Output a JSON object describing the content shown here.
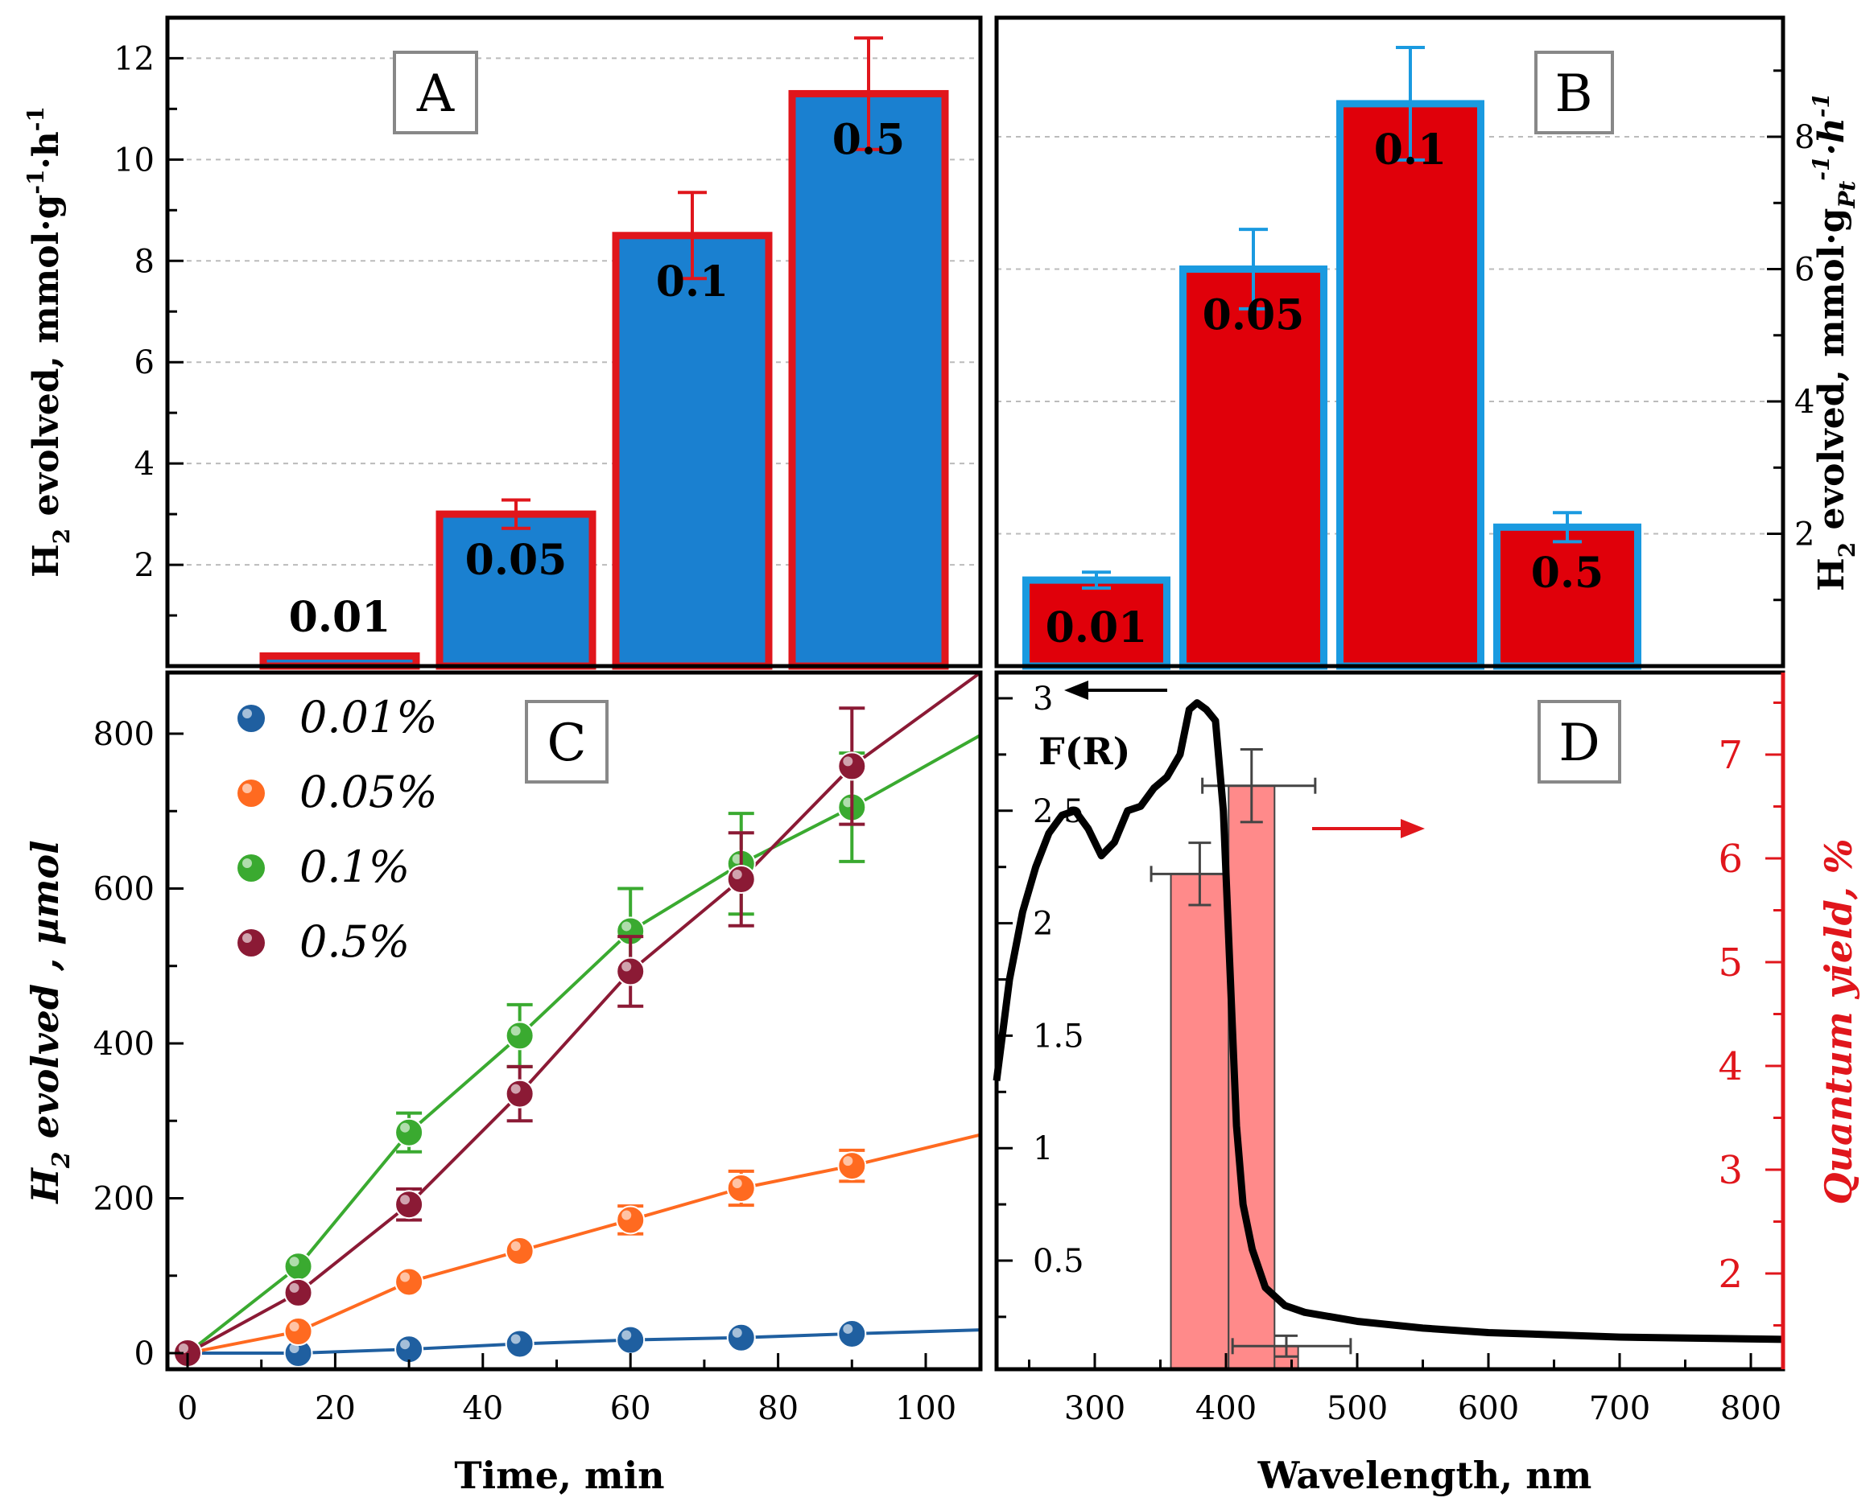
{
  "chart_data": [
    {
      "panel": "A",
      "type": "bar",
      "panel_label": "A",
      "categories": [
        "0.01",
        "0.05",
        "0.1",
        "0.5"
      ],
      "values": [
        0.2,
        3.0,
        8.5,
        11.3
      ],
      "errors": [
        0,
        0.28,
        0.85,
        1.1
      ],
      "ylabel_main": "H",
      "ylabel_sub": "2",
      "ylabel_rest": " evolved, mmol·g",
      "ylabel_sup1": "-1",
      "ylabel_mid": "·h",
      "ylabel_sup2": "-1",
      "ylim": [
        0,
        12.8
      ],
      "yticks": [
        2,
        4,
        6,
        8,
        10,
        12
      ],
      "bar_fill": "#1a80d0",
      "bar_edge": "#e0161c",
      "error_color": "#e0161c"
    },
    {
      "panel": "B",
      "type": "bar",
      "panel_label": "B",
      "categories": [
        "0.01",
        "0.05",
        "0.1",
        "0.5"
      ],
      "values": [
        1.3,
        6.0,
        8.5,
        2.1
      ],
      "errors": [
        0.12,
        0.6,
        0.85,
        0.22
      ],
      "ylabel_main": "H",
      "ylabel_sub": "2",
      "ylabel_rest": " evolved, mmol·g",
      "ylabel_subpt": "Pt",
      "ylabel_sup1": "-1",
      "ylabel_mid": "·h",
      "ylabel_sup2": "-1",
      "ylim": [
        0,
        9.8
      ],
      "yticks": [
        2,
        4,
        6,
        8
      ],
      "bar_fill": "#e0000a",
      "bar_edge": "#1a9ae0",
      "error_color": "#1a9ae0"
    },
    {
      "panel": "C",
      "type": "scatter",
      "panel_label": "C",
      "xlabel": "Time, min",
      "ylabel_main": "H",
      "ylabel_sub": "2",
      "ylabel_rest": " evolved , µmol",
      "xlim": [
        -3,
        107
      ],
      "ylim": [
        -20,
        880
      ],
      "xticks": [
        0,
        20,
        40,
        60,
        80,
        100
      ],
      "yticks": [
        0,
        200,
        400,
        600,
        800
      ],
      "series": [
        {
          "name": "0.01%",
          "color": "#1f5fa0",
          "x": [
            0,
            15,
            30,
            45,
            60,
            75,
            90
          ],
          "y": [
            0,
            0,
            5,
            12,
            17,
            20,
            25
          ],
          "err": [
            0,
            0,
            0,
            0,
            0,
            0,
            0
          ],
          "fit_end": 30
        },
        {
          "name": "0.05%",
          "color": "#ff6a20",
          "x": [
            0,
            15,
            30,
            45,
            60,
            75,
            90
          ],
          "y": [
            0,
            28,
            92,
            132,
            172,
            213,
            242
          ],
          "err": [
            0,
            0,
            0,
            0,
            18,
            22,
            20
          ],
          "fit_end": 282
        },
        {
          "name": "0.1%",
          "color": "#3aaa30",
          "x": [
            0,
            15,
            30,
            45,
            60,
            75,
            90
          ],
          "y": [
            0,
            112,
            285,
            410,
            545,
            632,
            705
          ],
          "err": [
            0,
            0,
            25,
            40,
            55,
            65,
            70
          ],
          "fit_end": 798
        },
        {
          "name": "0.5%",
          "color": "#8b1a35",
          "x": [
            0,
            15,
            30,
            45,
            60,
            75,
            90
          ],
          "y": [
            0,
            78,
            192,
            335,
            493,
            612,
            758
          ],
          "err": [
            0,
            0,
            20,
            35,
            45,
            60,
            75
          ],
          "fit_end": 880
        }
      ]
    },
    {
      "panel": "D",
      "type": "line",
      "panel_label": "D",
      "xlabel": "Wavelength, nm",
      "left_label": "F(R)",
      "ylabel_right": "Quantum yield, %",
      "xlim": [
        225,
        830
      ],
      "xticks": [
        300,
        400,
        500,
        600,
        700,
        800
      ],
      "yticks_left": [
        0.5,
        1,
        1.5,
        2,
        2.5,
        3
      ],
      "yticks_left_labels": [
        "0.5",
        "1",
        "1.5",
        "2",
        "2.5",
        "3"
      ],
      "ylim_left": [
        0,
        3.1
      ],
      "yticks_right": [
        2,
        3,
        4,
        5,
        6,
        7
      ],
      "ylim_right": [
        1,
        7.7
      ],
      "fr_curve": {
        "x": [
          225,
          235,
          245,
          255,
          265,
          275,
          285,
          295,
          305,
          315,
          325,
          335,
          345,
          355,
          365,
          372,
          378,
          385,
          392,
          398,
          403,
          408,
          413,
          420,
          430,
          445,
          460,
          500,
          550,
          600,
          700,
          830
        ],
        "y": [
          1.3,
          1.75,
          2.05,
          2.25,
          2.4,
          2.48,
          2.5,
          2.42,
          2.3,
          2.36,
          2.5,
          2.52,
          2.6,
          2.65,
          2.75,
          2.95,
          2.98,
          2.95,
          2.9,
          2.5,
          1.8,
          1.1,
          0.75,
          0.55,
          0.38,
          0.3,
          0.27,
          0.23,
          0.2,
          0.18,
          0.16,
          0.15
        ]
      },
      "qy_bars": [
        {
          "x_from": 358,
          "x_to": 402,
          "qy": 5.85,
          "err_y": 0.3,
          "err_x_from": 343,
          "err_x_to": 418
        },
        {
          "x_from": 402,
          "x_to": 437,
          "qy": 6.7,
          "err_y": 0.35,
          "err_x_from": 382,
          "err_x_to": 468
        },
        {
          "x_from": 437,
          "x_to": 455,
          "qy": 1.3,
          "err_y": 0.1,
          "err_x_from": 405,
          "err_x_to": 495
        }
      ],
      "bar_fill": "#ff8a8a",
      "right_axis_color": "#e0161c"
    }
  ]
}
